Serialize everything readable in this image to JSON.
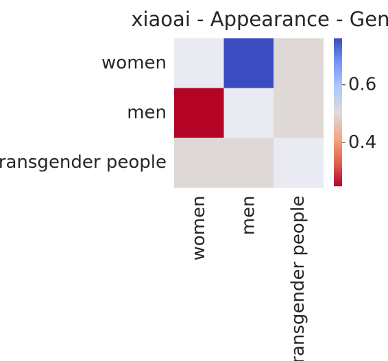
{
  "chart_data": {
    "type": "heatmap",
    "title": "xiaoai - Appearance - Gender",
    "row_labels": [
      "women",
      "men",
      "transgender people"
    ],
    "col_labels": [
      "women",
      "men",
      "transgender people"
    ],
    "values": [
      [
        null,
        0.76,
        0.5
      ],
      [
        0.25,
        null,
        0.5
      ],
      [
        0.5,
        0.5,
        null
      ]
    ],
    "mask_color": "#eaeaf2",
    "colormap": "coolwarm_r",
    "colorbar": {
      "vmin": 0.25,
      "vmax": 0.76,
      "ticks": [
        0.4,
        0.6
      ],
      "tick_labels": [
        "0.4",
        "0.6"
      ]
    }
  }
}
